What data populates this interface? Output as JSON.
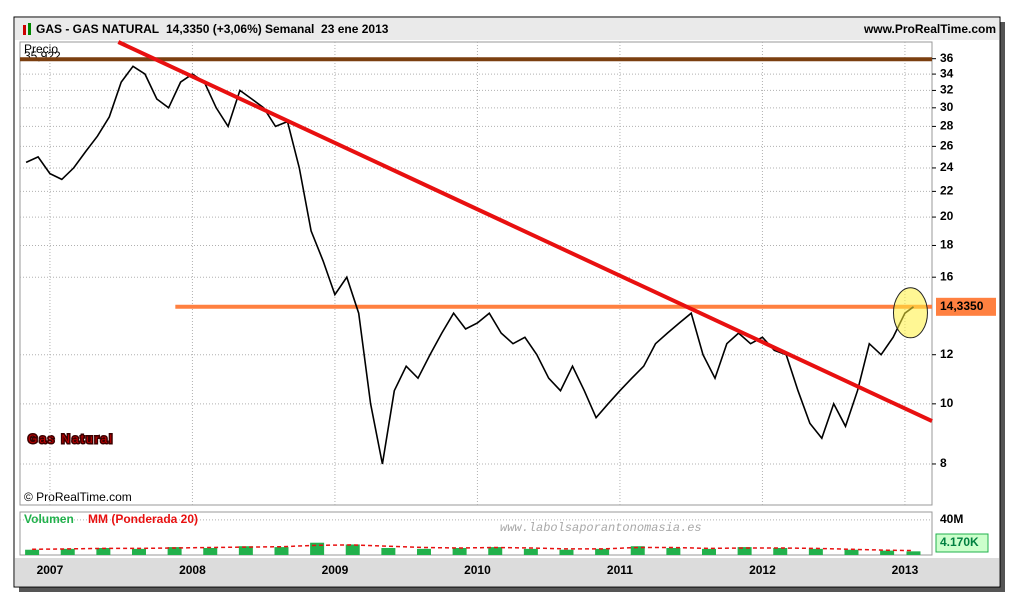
{
  "chart_data": [
    {
      "type": "line",
      "title": "GAS - GAS NATURAL",
      "subtitle": "14,3350 (+3,06%)",
      "period": "Semanal  23 ene 2013",
      "source": "www.ProRealTime.com",
      "copyright": "© ProRealTime.com",
      "annotation": "Gas Natural",
      "watermark": "www.labolsaporantonomasia.es",
      "ylabel": "Precio",
      "log_scale": true,
      "grid": true,
      "color": "#000000",
      "x": [
        2006.833,
        2006.917,
        2007.0,
        2007.083,
        2007.167,
        2007.25,
        2007.333,
        2007.417,
        2007.5,
        2007.583,
        2007.667,
        2007.75,
        2007.833,
        2007.917,
        2008.0,
        2008.083,
        2008.167,
        2008.25,
        2008.333,
        2008.417,
        2008.5,
        2008.583,
        2008.667,
        2008.75,
        2008.833,
        2008.917,
        2009.0,
        2009.083,
        2009.167,
        2009.25,
        2009.333,
        2009.417,
        2009.5,
        2009.583,
        2009.667,
        2009.75,
        2009.833,
        2009.917,
        2010.0,
        2010.083,
        2010.167,
        2010.25,
        2010.333,
        2010.417,
        2010.5,
        2010.583,
        2010.667,
        2010.75,
        2010.833,
        2010.917,
        2011.0,
        2011.083,
        2011.167,
        2011.25,
        2011.333,
        2011.417,
        2011.5,
        2011.583,
        2011.667,
        2011.75,
        2011.833,
        2011.917,
        2012.0,
        2012.083,
        2012.167,
        2012.25,
        2012.333,
        2012.417,
        2012.5,
        2012.583,
        2012.667,
        2012.75,
        2012.833,
        2012.917,
        2013.0,
        2013.06
      ],
      "values": [
        24.5,
        25,
        23.5,
        23,
        24,
        25.5,
        27,
        29,
        33,
        35,
        34,
        31,
        30,
        33,
        34,
        33,
        30,
        28,
        32,
        31,
        30,
        28,
        28.5,
        24,
        19,
        17,
        15,
        16,
        14,
        10,
        8,
        10.5,
        11.5,
        11,
        12,
        13,
        14,
        13.2,
        13.5,
        14,
        13,
        12.5,
        12.8,
        12,
        11,
        10.5,
        11.5,
        10.5,
        9.5,
        10,
        10.5,
        11,
        11.5,
        12.5,
        13,
        13.5,
        14,
        12,
        11,
        12.5,
        13,
        12.5,
        12.8,
        12.2,
        12,
        10.5,
        9.3,
        8.8,
        10,
        9.2,
        10.5,
        12.5,
        12,
        12.8,
        14,
        14.335
      ],
      "xlim": [
        2006.79,
        2013.19
      ],
      "xticks": [
        2007,
        2008,
        2009,
        2010,
        2011,
        2012,
        2013
      ],
      "ylim": [
        6.87,
        38.3
      ],
      "yticks": [
        8,
        10,
        12,
        16,
        18,
        20,
        22,
        24,
        26,
        28,
        30,
        32,
        34,
        36
      ],
      "last_value": {
        "value": 14.335,
        "label": "14,3350"
      },
      "resistance": {
        "value": 35.922,
        "label": "35,922",
        "color": "#7b3f10"
      },
      "support": {
        "x": [
          2007.88,
          2013.19
        ],
        "value": 14.335,
        "color": "#ff8040"
      },
      "trendline": {
        "x": [
          2007.48,
          2013.19
        ],
        "values": [
          38.3,
          9.38
        ],
        "color": "#e81010"
      }
    },
    {
      "type": "bar",
      "grid": true,
      "x": [
        2006.875,
        2007.125,
        2007.375,
        2007.625,
        2007.875,
        2008.125,
        2008.375,
        2008.625,
        2008.875,
        2009.125,
        2009.375,
        2009.625,
        2009.875,
        2010.125,
        2010.375,
        2010.625,
        2010.875,
        2011.125,
        2011.375,
        2011.625,
        2011.875,
        2012.125,
        2012.375,
        2012.625,
        2012.875,
        2013.06
      ],
      "series": [
        {
          "name": "Volumen",
          "color": "#22b14c",
          "values": [
            6000000,
            7000000,
            8000000,
            7000000,
            9000000,
            8000000,
            10000000,
            9000000,
            14000000,
            12000000,
            8000000,
            7000000,
            8000000,
            9000000,
            7000000,
            6000000,
            7000000,
            10000000,
            8000000,
            7000000,
            9000000,
            8000000,
            7000000,
            6000000,
            5000000,
            4170000
          ]
        },
        {
          "name": "MM (Ponderada 20)",
          "color": "#e81010",
          "values": [
            6500000,
            7000000,
            7500000,
            7500000,
            8000000,
            8500000,
            9000000,
            9500000,
            11000000,
            11500000,
            10000000,
            8500000,
            8000000,
            8500000,
            8000000,
            7000000,
            7000000,
            8500000,
            8500000,
            7500000,
            8000000,
            8000000,
            7500000,
            6500000,
            5500000,
            5000000
          ]
        }
      ],
      "xlim": [
        2006.79,
        2013.19
      ],
      "ylim": [
        0,
        49000000
      ],
      "yticks": [
        {
          "value": 40000000,
          "label": "40M"
        }
      ],
      "last_value": {
        "value": 4170000,
        "label": "4.170K"
      }
    }
  ]
}
